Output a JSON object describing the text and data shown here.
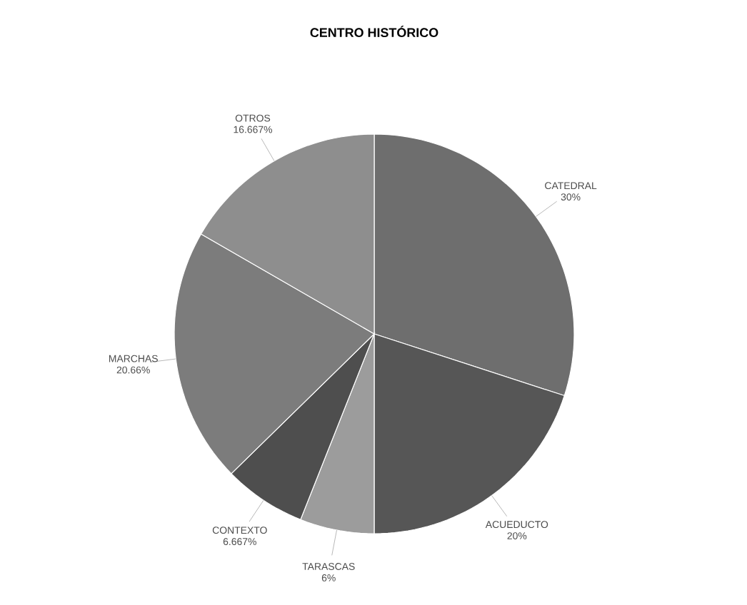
{
  "chart_data": {
    "type": "pie",
    "title": "CENTRO HISTÓRICO",
    "categories": [
      "CATEDRAL",
      "ACUEDUCTO",
      "TARASCAS",
      "CONTEXTO",
      "MARCHAS",
      "OTROS"
    ],
    "values": [
      30,
      20,
      6,
      6.667,
      20.66,
      16.667
    ],
    "value_labels": [
      "30%",
      "20%",
      "6%",
      "6.667%",
      "20.66%",
      "16.667%"
    ],
    "colors": [
      "#6e6e6e",
      "#565656",
      "#9c9c9c",
      "#4e4e4e",
      "#7c7c7c",
      "#8e8e8e"
    ]
  }
}
